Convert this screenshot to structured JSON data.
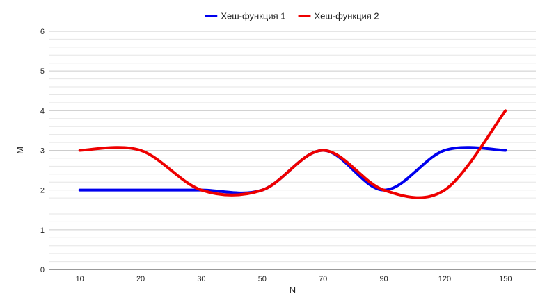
{
  "chart_data": {
    "type": "line",
    "categories": [
      "10",
      "20",
      "30",
      "50",
      "70",
      "90",
      "120",
      "150"
    ],
    "series": [
      {
        "name": "Хеш-функция 1",
        "color": "#0000ee",
        "values": [
          2,
          2,
          2,
          2,
          3,
          2,
          3,
          3
        ]
      },
      {
        "name": "Хеш-функция 2",
        "color": "#ee0000",
        "values": [
          3,
          3,
          2,
          2,
          3,
          2,
          2,
          4
        ]
      }
    ],
    "xlabel": "N",
    "ylabel": "M",
    "ylim": [
      0,
      6
    ],
    "yticks": [
      0,
      1,
      2,
      3,
      4,
      5,
      6
    ],
    "minor_gridlines_per_unit": 5,
    "grid": true,
    "smooth": true,
    "legend_position": "top-center"
  }
}
